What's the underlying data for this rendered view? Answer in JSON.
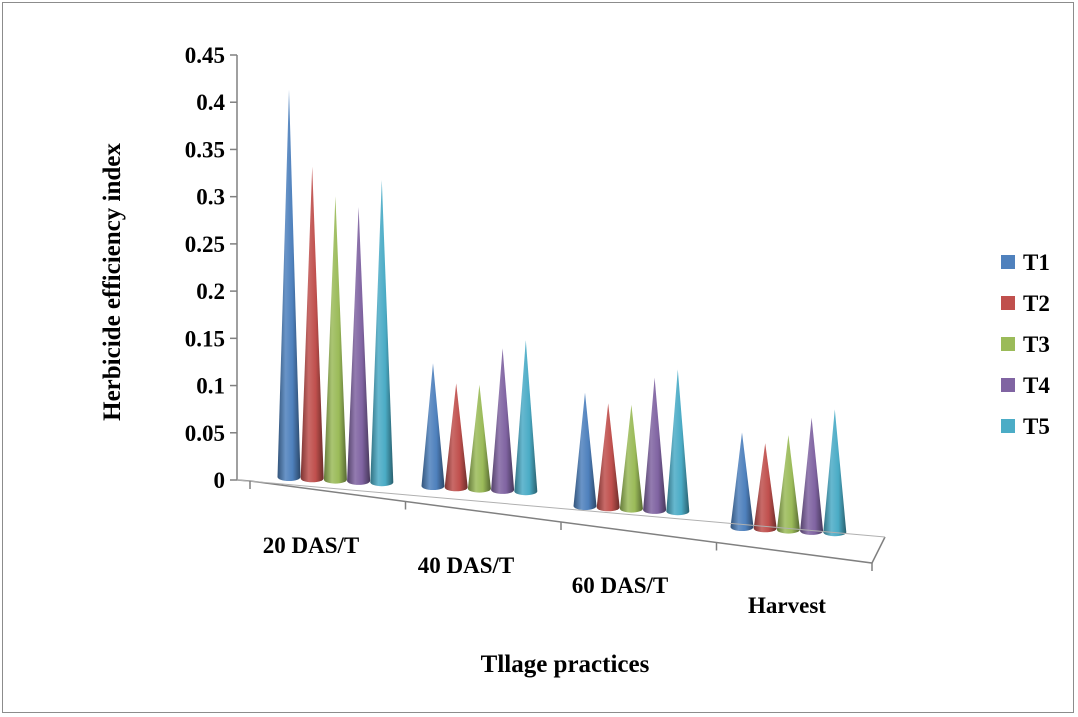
{
  "chart_data": {
    "type": "bar",
    "bar_shape": "cone",
    "three_d": true,
    "title": "",
    "xlabel": "Tllage practices",
    "ylabel": "Herbicide efficiency index",
    "categories": [
      "20 DAS/T",
      "40 DAS/T",
      "60 DAS/T",
      "Harvest"
    ],
    "ylim": [
      0,
      0.45
    ],
    "yticks": [
      "0",
      "0.05",
      "0.1",
      "0.15",
      "0.2",
      "0.25",
      "0.3",
      "0.35",
      "0.4",
      "0.45"
    ],
    "grid": false,
    "legend_position": "right",
    "series": [
      {
        "name": "T1",
        "color": "#4f81bd",
        "values": [
          0.41,
          0.13,
          0.12,
          0.1
        ]
      },
      {
        "name": "T2",
        "color": "#c0504d",
        "values": [
          0.33,
          0.11,
          0.11,
          0.09
        ]
      },
      {
        "name": "T3",
        "color": "#9bbb59",
        "values": [
          0.3,
          0.11,
          0.11,
          0.1
        ]
      },
      {
        "name": "T4",
        "color": "#8064a2",
        "values": [
          0.29,
          0.15,
          0.14,
          0.12
        ]
      },
      {
        "name": "T5",
        "color": "#4bacc6",
        "values": [
          0.32,
          0.16,
          0.15,
          0.13
        ]
      }
    ]
  }
}
